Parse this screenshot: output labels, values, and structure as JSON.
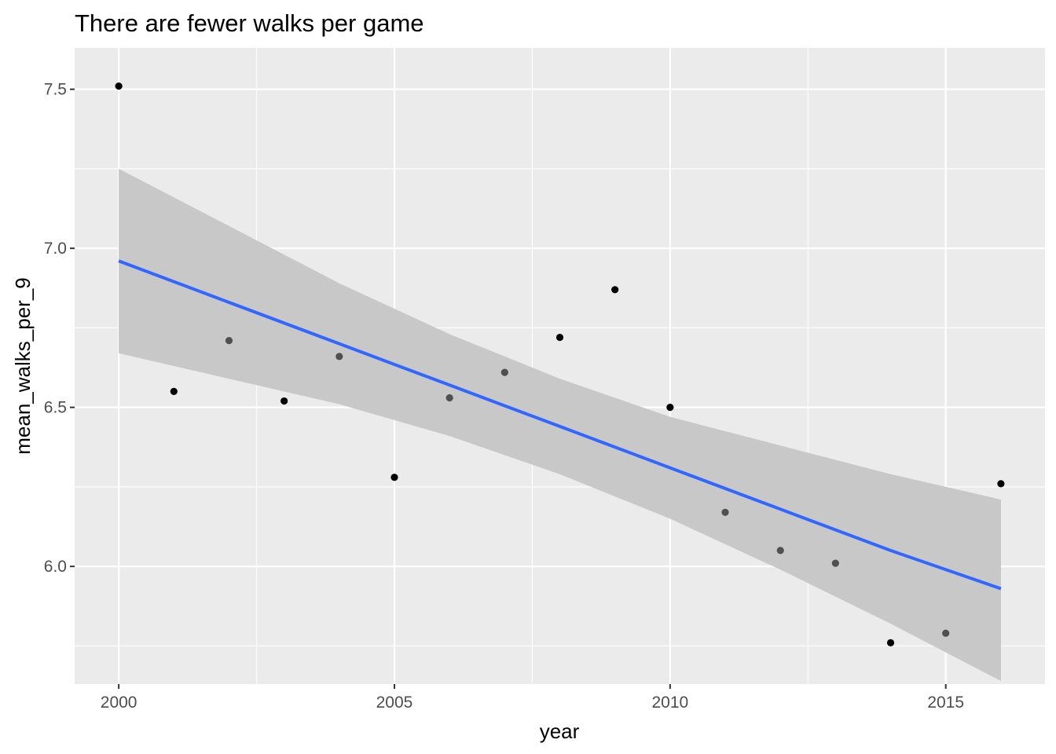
{
  "chart_data": {
    "type": "scatter",
    "title": "There are fewer walks per game",
    "xlabel": "year",
    "ylabel": "mean_walks_per_9",
    "xlim": [
      1999.2,
      2016.8
    ],
    "ylim": [
      5.63,
      7.63
    ],
    "x_ticks": [
      2000,
      2005,
      2010,
      2015
    ],
    "x_tick_labels": [
      "2000",
      "2005",
      "2010",
      "2015"
    ],
    "y_ticks": [
      6.0,
      6.5,
      7.0,
      7.5
    ],
    "y_tick_labels": [
      "6.0",
      "6.5",
      "7.0",
      "7.5"
    ],
    "grid": true,
    "colors": {
      "panel_background": "#ebebeb",
      "grid": "#ffffff",
      "points": "#000000",
      "smooth_line": "#3366ff",
      "confidence_band": "#c8c8c8"
    },
    "points": {
      "x": [
        2000,
        2001,
        2002,
        2003,
        2004,
        2005,
        2006,
        2007,
        2008,
        2009,
        2010,
        2011,
        2012,
        2013,
        2014,
        2015,
        2016
      ],
      "y": [
        7.51,
        6.55,
        6.71,
        6.52,
        6.66,
        6.28,
        6.53,
        6.61,
        6.72,
        6.87,
        6.5,
        6.17,
        6.05,
        6.01,
        5.76,
        5.79,
        6.26
      ]
    },
    "smooth": {
      "method": "lm",
      "x": [
        2000,
        2002,
        2004,
        2006,
        2008,
        2010,
        2012,
        2014,
        2016
      ],
      "fit": [
        6.96,
        6.83,
        6.7,
        6.57,
        6.44,
        6.31,
        6.18,
        6.05,
        5.93
      ],
      "lower": [
        6.67,
        6.59,
        6.51,
        6.41,
        6.29,
        6.15,
        5.99,
        5.82,
        5.64
      ],
      "upper": [
        7.25,
        7.07,
        6.89,
        6.73,
        6.59,
        6.47,
        6.38,
        6.29,
        6.21
      ]
    }
  }
}
